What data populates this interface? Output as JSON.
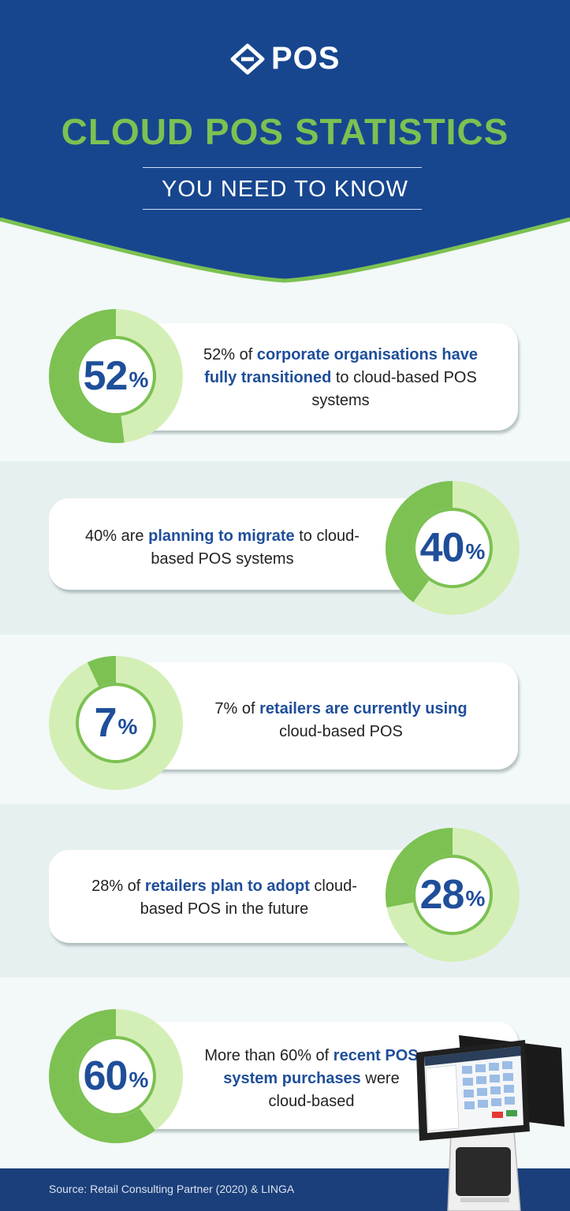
{
  "header": {
    "logo_text": "POS",
    "title": "CLOUD POS STATISTICS",
    "subtitle": "YOU NEED TO KNOW"
  },
  "colors": {
    "navy": "#17468f",
    "green": "#7cc152",
    "light_green": "#d3efb6",
    "blue_text": "#1f4e9a"
  },
  "stats": [
    {
      "value": 52,
      "num": "52",
      "pct": "%",
      "pre": "52% of ",
      "em": "corporate organisations have fully transitioned",
      "post": " to cloud-based POS systems"
    },
    {
      "value": 40,
      "num": "40",
      "pct": "%",
      "pre": "40% are ",
      "em": "planning to migrate",
      "post": " to cloud-based POS systems"
    },
    {
      "value": 7,
      "num": "7",
      "pct": "%",
      "pre": "7% of ",
      "em": "retailers are currently using",
      "post": " cloud-based POS"
    },
    {
      "value": 28,
      "num": "28",
      "pct": "%",
      "pre": "28% of ",
      "em": "retailers plan to adopt",
      "post": " cloud-based POS in the future"
    },
    {
      "value": 60,
      "num": "60",
      "pct": "%",
      "pre": "More than 60% of ",
      "em": "recent POS system purchases",
      "post": " were cloud-based"
    }
  ],
  "footer": {
    "source": "Source:  Retail Consulting Partner (2020) & LINGA"
  }
}
